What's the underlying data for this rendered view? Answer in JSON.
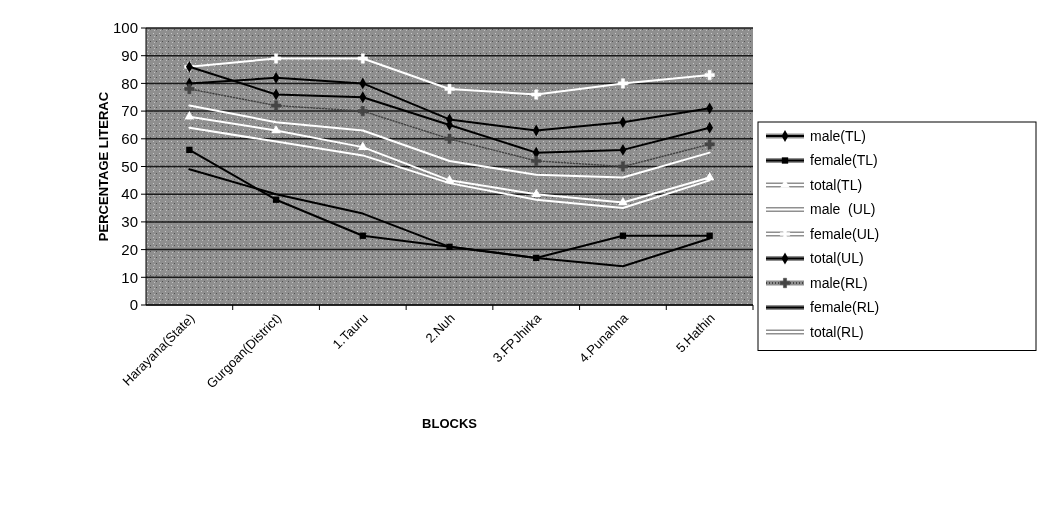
{
  "chart_data": {
    "type": "line",
    "xlabel": "BLOCKS",
    "ylabel": "PERCENTAGE LITERAC",
    "categories": [
      "Harayana(State)",
      "Gurgoan(District)",
      "1.Tauru",
      "2.Nuh",
      "3.FPJhirka",
      "4.Punahna",
      "5.Hathin"
    ],
    "ylim": [
      0,
      100
    ],
    "yticks": [
      0,
      10,
      20,
      30,
      40,
      50,
      60,
      70,
      80,
      90,
      100
    ],
    "grid": "y",
    "legend": "right",
    "series": [
      {
        "name": "male(TL)",
        "color": "#000000",
        "marker": "diamond",
        "values": [
          80,
          82,
          80,
          67,
          63,
          66,
          71
        ]
      },
      {
        "name": "female(TL)",
        "color": "#000000",
        "marker": "square",
        "values": [
          56,
          38,
          25,
          21,
          17,
          25,
          25
        ]
      },
      {
        "name": "total(TL)",
        "color": "#ffffff",
        "marker": "triangle",
        "values": [
          68,
          63,
          57,
          45,
          40,
          37,
          46
        ]
      },
      {
        "name": "male  (UL)",
        "color": "#ffffff",
        "marker": "none",
        "values": [
          64,
          59,
          54,
          44,
          38,
          35,
          45
        ]
      },
      {
        "name": "female(UL)",
        "color": "#ffffff",
        "marker": "cross",
        "values": [
          86,
          89,
          89,
          78,
          76,
          80,
          83
        ]
      },
      {
        "name": "total(UL)",
        "color": "#000000",
        "marker": "diamond",
        "values": [
          86,
          76,
          75,
          65,
          55,
          56,
          64
        ]
      },
      {
        "name": "male(RL)",
        "color": "#444444",
        "marker": "cross",
        "line_style": "dotted",
        "values": [
          78,
          72,
          70,
          60,
          52,
          50,
          58
        ]
      },
      {
        "name": "female(RL)",
        "color": "#000000",
        "marker": "none",
        "values": [
          49,
          40,
          33,
          21,
          17,
          14,
          24
        ]
      },
      {
        "name": "total(RL)",
        "color": "#ffffff",
        "marker": "none",
        "values": [
          72,
          66,
          63,
          52,
          47,
          46,
          55
        ]
      }
    ]
  }
}
